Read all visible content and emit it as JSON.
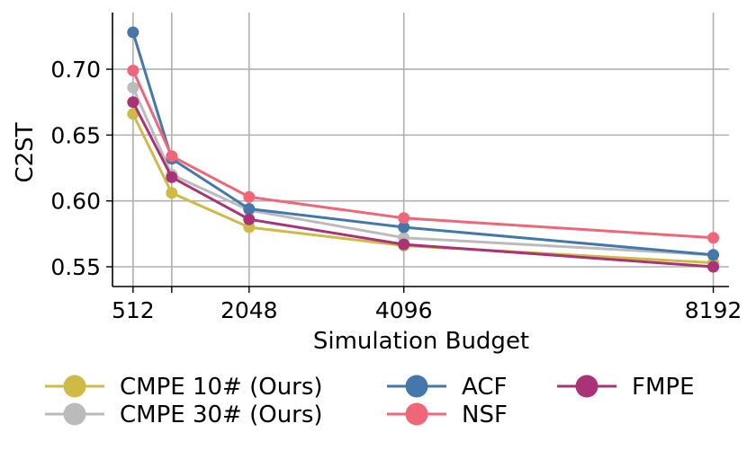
{
  "chart_data": {
    "type": "line",
    "title": "",
    "xlabel": "Simulation Budget",
    "ylabel": "C2ST",
    "x": [
      512,
      1024,
      2048,
      4096,
      8192
    ],
    "xticks": [
      512,
      2048,
      4096,
      8192
    ],
    "xtick_labels": [
      "512",
      "2048",
      "4096",
      "8192"
    ],
    "yticks": [
      0.55,
      0.6,
      0.65,
      0.7
    ],
    "ytick_labels": [
      "0.55",
      "0.60",
      "0.65",
      "0.70"
    ],
    "xlim": [
      240,
      8400
    ],
    "ylim": [
      0.535,
      0.743
    ],
    "grid": true,
    "legend_position": "bottom",
    "series": [
      {
        "name": "CMPE 10# (Ours)",
        "color": "#CDBB45",
        "values": [
          0.666,
          0.606,
          0.58,
          0.566,
          0.553
        ]
      },
      {
        "name": "CMPE 30# (Ours)",
        "color": "#BBBBBB",
        "values": [
          0.686,
          0.62,
          0.593,
          0.572,
          0.559
        ]
      },
      {
        "name": "ACF",
        "color": "#4477AA",
        "values": [
          0.728,
          0.632,
          0.594,
          0.58,
          0.559
        ]
      },
      {
        "name": "NSF",
        "color": "#EE6677",
        "values": [
          0.699,
          0.634,
          0.603,
          0.587,
          0.572
        ]
      },
      {
        "name": "FMPE",
        "color": "#AA3377",
        "values": [
          0.675,
          0.618,
          0.586,
          0.567,
          0.55
        ]
      }
    ]
  }
}
